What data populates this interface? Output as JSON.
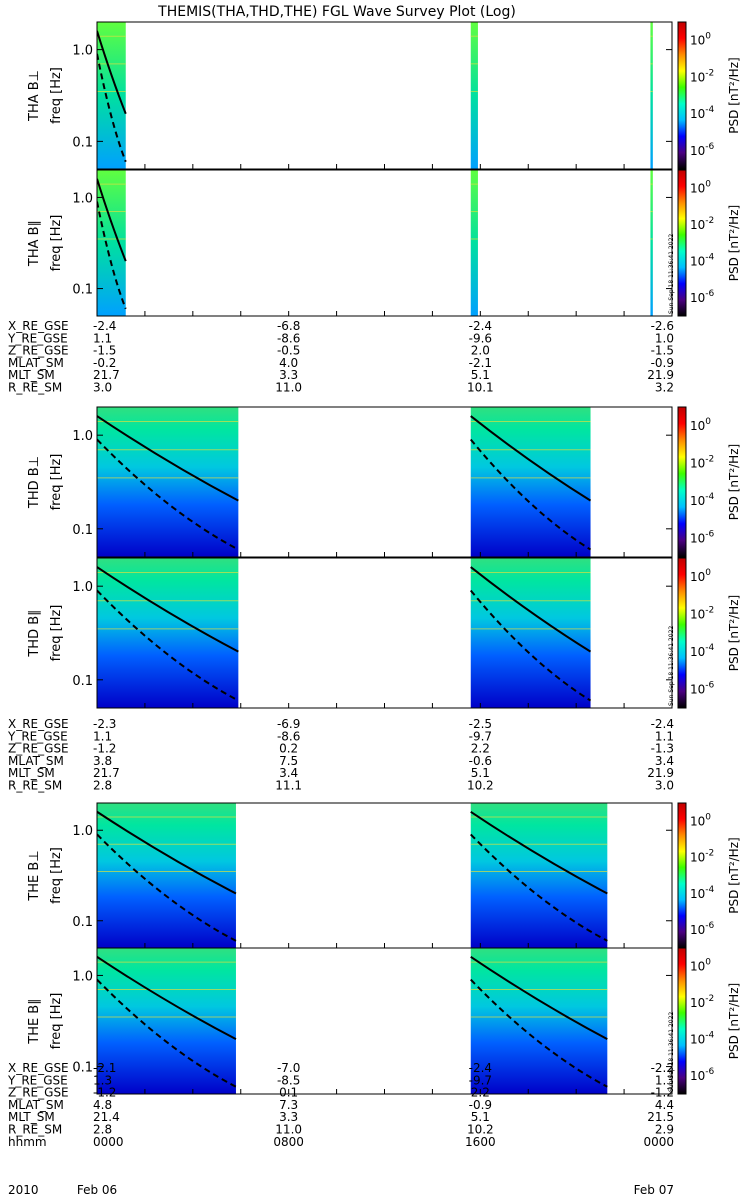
{
  "title": "THEMIS(THA,THD,THE) FGL Wave Survey Plot (Log)",
  "chart_data": {
    "type": "heatmap",
    "title": "THEMIS(THA,THD,THE) FGL Wave Survey Plot (Log)",
    "x_time_range": [
      "2010-02-06 00:00",
      "2010-02-07 00:00"
    ],
    "y_scale": "log",
    "ylim_hz": [
      0.05,
      2.0
    ],
    "y_ticks": [
      {
        "value": 0.1,
        "label": "0.1"
      },
      {
        "value": 1.0,
        "label": "1.0"
      }
    ],
    "colorbar": {
      "label": "PSD [nT²/Hz]",
      "scale": "log",
      "ticks": [
        {
          "base": "10",
          "exp": "0"
        },
        {
          "base": "10",
          "exp": "-2"
        },
        {
          "base": "10",
          "exp": "-4"
        },
        {
          "base": "10",
          "exp": "-6"
        }
      ],
      "colors": [
        "#000000",
        "#4b0082",
        "#0000ff",
        "#00bfff",
        "#00ffc8",
        "#3cff00",
        "#ffff00",
        "#ff8c00",
        "#ff0000",
        "#c00000"
      ]
    },
    "stamp": "Sun Sep 18 11:36:41 2022",
    "panels": [
      {
        "probe": "THA",
        "component": "B⊥",
        "ylabel_probe": "THA B⊥",
        "ylabel_freq": "freq [Hz]",
        "data_intervals_hours": [
          [
            0.0,
            1.2
          ],
          [
            15.6,
            15.9
          ],
          [
            23.1,
            23.2
          ]
        ]
      },
      {
        "probe": "THA",
        "component": "B∥",
        "ylabel_probe": "THA B∥",
        "ylabel_freq": "freq [Hz]",
        "data_intervals_hours": [
          [
            0.0,
            1.2
          ],
          [
            15.6,
            15.9
          ],
          [
            23.1,
            23.2
          ]
        ]
      },
      {
        "probe": "THD",
        "component": "B⊥",
        "ylabel_probe": "THD B⊥",
        "ylabel_freq": "freq [Hz]",
        "data_intervals_hours": [
          [
            0.0,
            5.9
          ],
          [
            15.6,
            20.6
          ]
        ]
      },
      {
        "probe": "THD",
        "component": "B∥",
        "ylabel_probe": "THD B∥",
        "ylabel_freq": "freq [Hz]",
        "data_intervals_hours": [
          [
            0.0,
            5.9
          ],
          [
            15.6,
            20.6
          ]
        ]
      },
      {
        "probe": "THE",
        "component": "B⊥",
        "ylabel_probe": "THE B⊥",
        "ylabel_freq": "freq [Hz]",
        "data_intervals_hours": [
          [
            0.0,
            5.8
          ],
          [
            15.6,
            21.3
          ]
        ]
      },
      {
        "probe": "THE",
        "component": "B∥",
        "ylabel_probe": "THE B∥",
        "ylabel_freq": "freq [Hz]",
        "data_intervals_hours": [
          [
            0.0,
            5.8
          ],
          [
            15.6,
            21.3
          ]
        ]
      }
    ],
    "ephemeris_groups": [
      {
        "probe": "THA",
        "rows": [
          {
            "name": "X_RE_GSE",
            "values": [
              "-2.4",
              "-6.8",
              "-2.4",
              "-2.6"
            ]
          },
          {
            "name": "Y_RE_GSE",
            "values": [
              "1.1",
              "-8.6",
              "-9.6",
              "1.0"
            ]
          },
          {
            "name": "Z_RE_GSE",
            "values": [
              "-1.5",
              "-0.5",
              "2.0",
              "-1.5"
            ]
          },
          {
            "name": "MLAT_SM",
            "values": [
              "-0.2",
              "4.0",
              "-2.1",
              "-0.9"
            ]
          },
          {
            "name": "MLT_SM",
            "values": [
              "21.7",
              "3.3",
              "5.1",
              "21.9"
            ]
          },
          {
            "name": "R_RE_SM",
            "values": [
              "3.0",
              "11.0",
              "10.1",
              "3.2"
            ]
          }
        ]
      },
      {
        "probe": "THD",
        "rows": [
          {
            "name": "X_RE_GSE",
            "values": [
              "-2.3",
              "-6.9",
              "-2.5",
              "-2.4"
            ]
          },
          {
            "name": "Y_RE_GSE",
            "values": [
              "1.1",
              "-8.6",
              "-9.7",
              "1.1"
            ]
          },
          {
            "name": "Z_RE_GSE",
            "values": [
              "-1.2",
              "0.2",
              "2.2",
              "-1.3"
            ]
          },
          {
            "name": "MLAT_SM",
            "values": [
              "3.8",
              "7.5",
              "-0.6",
              "3.4"
            ]
          },
          {
            "name": "MLT_SM",
            "values": [
              "21.7",
              "3.4",
              "5.1",
              "21.9"
            ]
          },
          {
            "name": "R_RE_SM",
            "values": [
              "2.8",
              "11.1",
              "10.2",
              "3.0"
            ]
          }
        ]
      },
      {
        "probe": "THE",
        "rows": [
          {
            "name": "X_RE_GSE",
            "values": [
              "-2.1",
              "-7.0",
              "-2.4",
              "-2.2"
            ]
          },
          {
            "name": "Y_RE_GSE",
            "values": [
              "1.3",
              "-8.5",
              "-9.7",
              "1.3"
            ]
          },
          {
            "name": "Z_RE_GSE",
            "values": [
              "-1.2",
              "0.1",
              "2.2",
              "-1.2"
            ]
          },
          {
            "name": "MLAT_SM",
            "values": [
              "4.8",
              "7.3",
              "-0.9",
              "4.4"
            ]
          },
          {
            "name": "MLT_SM",
            "values": [
              "21.4",
              "3.3",
              "5.1",
              "21.5"
            ]
          },
          {
            "name": "R_RE_SM",
            "values": [
              "2.8",
              "11.0",
              "10.2",
              "2.9"
            ]
          },
          {
            "name": "hhmm",
            "values": [
              "0000",
              "0800",
              "1600",
              "0000"
            ]
          }
        ]
      }
    ],
    "date_labels": [
      "2010",
      "Feb 06",
      "Feb 07"
    ]
  }
}
